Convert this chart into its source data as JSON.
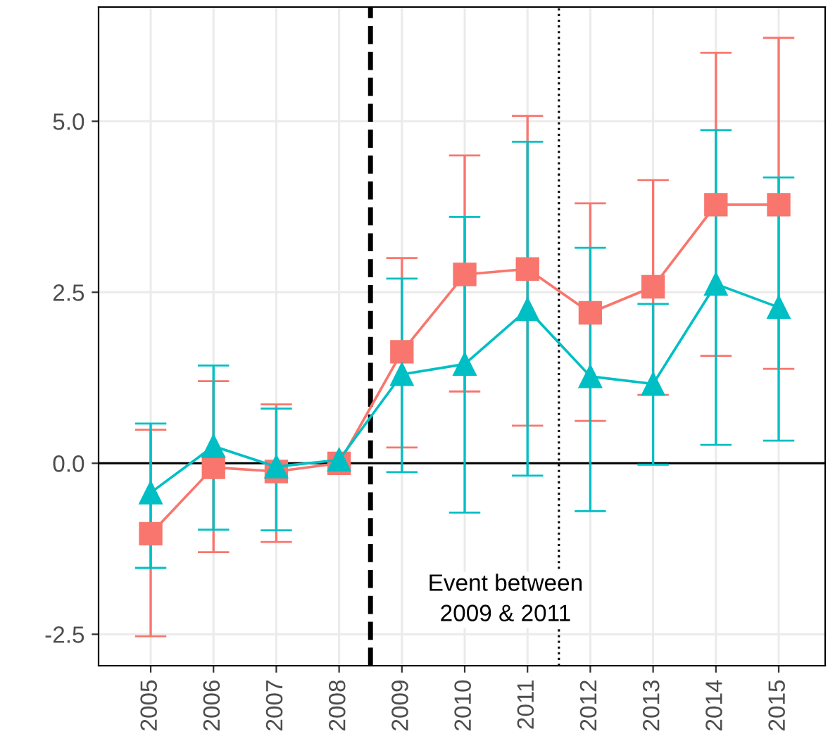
{
  "chart_data": {
    "type": "line",
    "x": [
      2005,
      2006,
      2007,
      2008,
      2009,
      2010,
      2011,
      2012,
      2013,
      2014,
      2015
    ],
    "series": [
      {
        "color": "#f8766d",
        "marker": "square",
        "values": [
          -1.03,
          -0.06,
          -0.12,
          0.0,
          1.63,
          2.76,
          2.84,
          2.2,
          2.58,
          3.78,
          3.78
        ],
        "errors": [
          [
            -2.53,
            0.49
          ],
          [
            -1.3,
            1.2
          ],
          [
            -1.15,
            0.86
          ],
          null,
          [
            0.23,
            3.0
          ],
          [
            1.05,
            4.5
          ],
          [
            0.55,
            5.08
          ],
          [
            0.62,
            3.8
          ],
          [
            1.0,
            4.14
          ],
          [
            1.57,
            6.0
          ],
          [
            1.38,
            6.22
          ]
        ]
      },
      {
        "color": "#00bfc4",
        "marker": "triangle",
        "values": [
          -0.43,
          0.25,
          -0.05,
          0.05,
          1.3,
          1.45,
          2.25,
          1.27,
          1.16,
          2.62,
          2.28
        ],
        "errors": [
          [
            -1.53,
            0.58
          ],
          [
            -0.97,
            1.43
          ],
          [
            -0.98,
            0.8
          ],
          null,
          [
            -0.13,
            2.7
          ],
          [
            -0.72,
            3.6
          ],
          [
            -0.18,
            4.7
          ],
          [
            -0.7,
            3.15
          ],
          [
            -0.02,
            2.33
          ],
          [
            0.27,
            4.87
          ],
          [
            0.33,
            4.18
          ]
        ]
      }
    ],
    "xlim": [
      2004.17,
      2015.74
    ],
    "xticks": [
      2005,
      2006,
      2007,
      2008,
      2009,
      2010,
      2011,
      2012,
      2013,
      2014,
      2015
    ],
    "ylim": [
      -2.96,
      6.67
    ],
    "yticks": [
      {
        "value": -2.5,
        "label": "-2.5"
      },
      {
        "value": 0,
        "label": "0.0"
      },
      {
        "value": 2.5,
        "label": "2.5"
      },
      {
        "value": 5,
        "label": "5.0"
      }
    ],
    "grid": true,
    "ref_lines": [
      {
        "axis": "y",
        "value": 0,
        "color": "#000000",
        "line_style": "solid"
      },
      {
        "axis": "x",
        "value": 2008.5,
        "color": "#000000",
        "line_style": "dashed"
      },
      {
        "axis": "x",
        "value": 2011.5,
        "color": "#000000",
        "line_style": "dotted"
      }
    ],
    "annotations": [
      "Event between\n2009 & 2011"
    ]
  }
}
